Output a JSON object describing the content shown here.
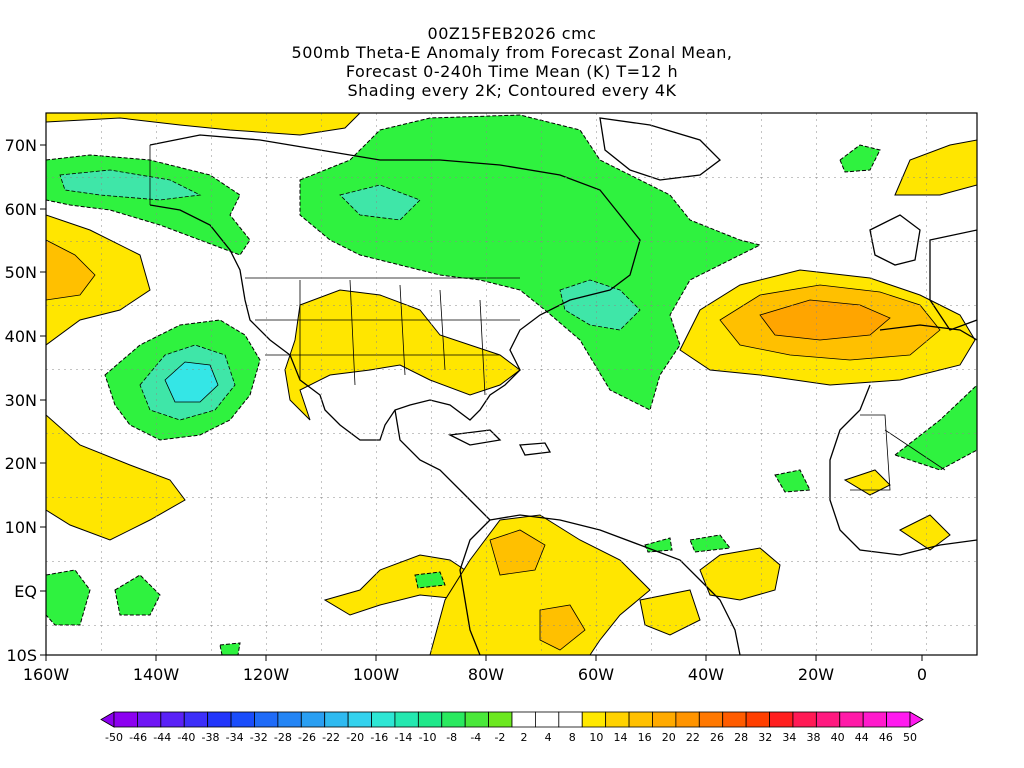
{
  "title": {
    "line1": "00Z15FEB2026 cmc",
    "line2": "500mb Theta-E Anomaly from Forecast Zonal Mean,",
    "line3": "Forecast 0-240h Time Mean (K) T=12 h",
    "line4": "Shading every 2K; Contoured every 4K"
  },
  "axes": {
    "lon_labels": [
      "160W",
      "140W",
      "120W",
      "100W",
      "80W",
      "60W",
      "40W",
      "20W",
      "0"
    ],
    "lat_labels": [
      "70N",
      "60N",
      "50N",
      "40N",
      "30N",
      "20N",
      "10N",
      "EQ",
      "10S"
    ]
  },
  "colorbar": {
    "labels": [
      "-50",
      "-46",
      "-44",
      "-40",
      "-38",
      "-34",
      "-32",
      "-28",
      "-26",
      "-22",
      "-20",
      "-16",
      "-14",
      "-10",
      "-8",
      "-4",
      "-2",
      "2",
      "4",
      "8",
      "10",
      "14",
      "16",
      "20",
      "22",
      "26",
      "28",
      "32",
      "34",
      "38",
      "40",
      "44",
      "46",
      "50"
    ],
    "colors": [
      "#8c00f0",
      "#6f16f5",
      "#5a22f7",
      "#3d2ff9",
      "#2236fb",
      "#1a4dfb",
      "#1f6bf8",
      "#2485f5",
      "#2a9ff2",
      "#2fbaf0",
      "#34d2ee",
      "#2ee6d4",
      "#24e8b0",
      "#1fe88a",
      "#2ae95f",
      "#4ae83a",
      "#6ce81f",
      "#ffffff",
      "#ffffff",
      "#ffffff",
      "#ffe800",
      "#ffd200",
      "#ffc000",
      "#ffaa00",
      "#ff9400",
      "#ff7800",
      "#ff5c00",
      "#ff3f00",
      "#ff1e1e",
      "#ff1a55",
      "#ff1a80",
      "#ff1aa8",
      "#ff1acc",
      "#ff1aef"
    ]
  },
  "colors": {
    "negative_anomaly": "#2ff23f",
    "positive_anomaly": "#ffe600",
    "strong_positive": "#ffa500"
  }
}
